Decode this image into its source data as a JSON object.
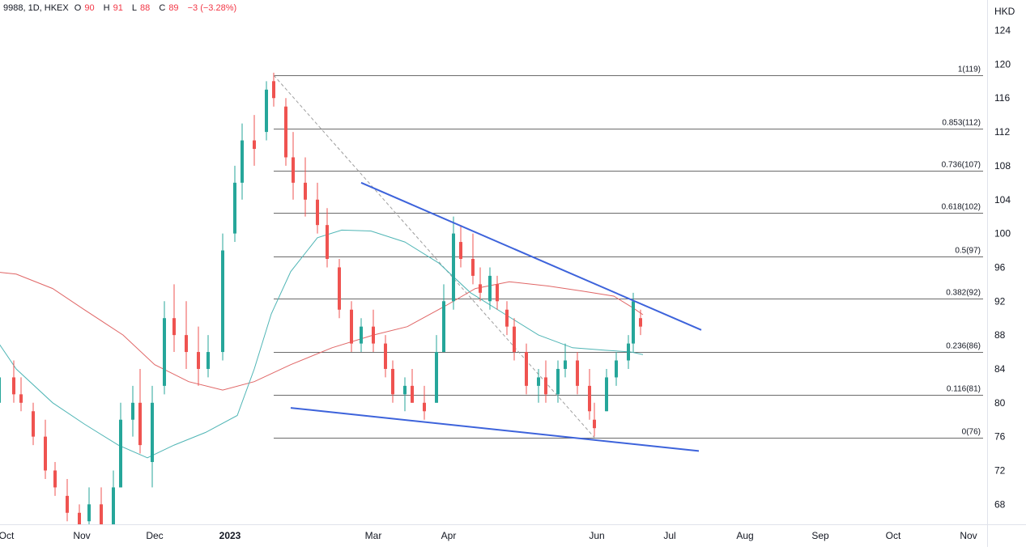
{
  "legend": {
    "symbol": "9988, 1D, HKEX",
    "o_label": "O",
    "o": "90",
    "h_label": "H",
    "h": "91",
    "l_label": "L",
    "l": "88",
    "c_label": "C",
    "c": "89",
    "change": "−3 (−3.28%)"
  },
  "colors": {
    "up": "#26a69a",
    "down": "#ef5350",
    "ma_fast": "#4fb5b5",
    "ma_slow": "#e06666",
    "trendline": "#3d63db",
    "fib": "#6b6b6b",
    "diagonal": "#9e9e9e"
  },
  "chart_data": {
    "type": "candlestick",
    "currency_label": "HKD",
    "ylim": [
      65,
      126
    ],
    "y_ticks": [
      68,
      72,
      76,
      80,
      84,
      88,
      92,
      96,
      100,
      104,
      108,
      112,
      116,
      120,
      124
    ],
    "x_tick_labels": [
      "Oct",
      "Nov",
      "Dec",
      "2023",
      "Mar",
      "Apr",
      "Jun",
      "Jul",
      "Aug",
      "Sep",
      "Oct",
      "Nov"
    ],
    "x_tick_dates": [
      "2022-10-01",
      "2022-11-01",
      "2022-12-01",
      "2023-01-01",
      "2023-03-01",
      "2023-04-01",
      "2023-06-01",
      "2023-07-01",
      "2023-08-01",
      "2023-09-01",
      "2023-10-01",
      "2023-11-01"
    ],
    "fib_levels": [
      {
        "label": "1(119)",
        "value": 118.7
      },
      {
        "label": "0.853(112)",
        "value": 112.4
      },
      {
        "label": "0.736(107)",
        "value": 107.4
      },
      {
        "label": "0.618(102)",
        "value": 102.4
      },
      {
        "label": "0.5(97)",
        "value": 97.3
      },
      {
        "label": "0.382(92)",
        "value": 92.3
      },
      {
        "label": "0.236(86)",
        "value": 86.0
      },
      {
        "label": "0.116(81)",
        "value": 80.9
      },
      {
        "label": "0(76)",
        "value": 75.9
      }
    ],
    "trendlines": [
      {
        "x": [
          "2023-02-24",
          "2023-07-14"
        ],
        "y": [
          106.0,
          88.6
        ]
      },
      {
        "x": [
          "2023-01-26",
          "2023-07-13"
        ],
        "y": [
          79.4,
          74.3
        ]
      }
    ],
    "diagonal": {
      "x": [
        "2023-01-19",
        "2023-05-31"
      ],
      "y": [
        118.7,
        75.9
      ]
    },
    "ma_fast": [
      [
        "2022-09-22",
        89.5
      ],
      [
        "2022-10-05",
        84
      ],
      [
        "2022-10-20",
        80
      ],
      [
        "2022-11-02",
        77.5
      ],
      [
        "2022-11-16",
        75
      ],
      [
        "2022-11-28",
        73.5
      ],
      [
        "2022-12-09",
        75
      ],
      [
        "2022-12-22",
        76.5
      ],
      [
        "2023-01-04",
        78.5
      ],
      [
        "2023-01-11",
        84
      ],
      [
        "2023-01-18",
        90.5
      ],
      [
        "2023-01-26",
        95.5
      ],
      [
        "2023-02-06",
        99.5
      ],
      [
        "2023-02-16",
        100.4
      ],
      [
        "2023-02-28",
        100.3
      ],
      [
        "2023-03-14",
        99
      ],
      [
        "2023-03-28",
        96.5
      ],
      [
        "2023-04-10",
        93
      ],
      [
        "2023-04-24",
        90.5
      ],
      [
        "2023-05-08",
        88
      ],
      [
        "2023-05-22",
        86.5
      ],
      [
        "2023-06-05",
        86.2
      ],
      [
        "2023-06-15",
        86
      ],
      [
        "2023-06-20",
        85.7
      ]
    ],
    "ma_slow": [
      [
        "2022-09-22",
        95.6
      ],
      [
        "2022-10-05",
        95.2
      ],
      [
        "2022-10-20",
        93.5
      ],
      [
        "2022-11-02",
        91
      ],
      [
        "2022-11-18",
        88
      ],
      [
        "2022-12-01",
        84.5
      ],
      [
        "2022-12-15",
        82.5
      ],
      [
        "2022-12-29",
        81.5
      ],
      [
        "2023-01-11",
        82.5
      ],
      [
        "2023-01-26",
        84.5
      ],
      [
        "2023-02-12",
        86.5
      ],
      [
        "2023-03-01",
        88
      ],
      [
        "2023-03-15",
        89
      ],
      [
        "2023-03-31",
        91.5
      ],
      [
        "2023-04-12",
        93.5
      ],
      [
        "2023-04-26",
        94.3
      ],
      [
        "2023-05-12",
        93.8
      ],
      [
        "2023-05-26",
        93.2
      ],
      [
        "2023-06-08",
        92.6
      ],
      [
        "2023-06-16",
        91.2
      ],
      [
        "2023-06-20",
        90.4
      ]
    ],
    "candles": [
      [
        "2022-09-23",
        85,
        86,
        78,
        79
      ],
      [
        "2022-09-28",
        80,
        84,
        79,
        83
      ],
      [
        "2022-10-04",
        83,
        85,
        80,
        81
      ],
      [
        "2022-10-07",
        81,
        83,
        79,
        80
      ],
      [
        "2022-10-12",
        79,
        80,
        75,
        76
      ],
      [
        "2022-10-17",
        76,
        78,
        71,
        72
      ],
      [
        "2022-10-21",
        72,
        73,
        69,
        70
      ],
      [
        "2022-10-26",
        69,
        71,
        66,
        67
      ],
      [
        "2022-10-31",
        67,
        68,
        64,
        65
      ],
      [
        "2022-11-04",
        66,
        70,
        64,
        68
      ],
      [
        "2022-11-09",
        68,
        70,
        62,
        63
      ],
      [
        "2022-11-14",
        64,
        72,
        63,
        70
      ],
      [
        "2022-11-17",
        70,
        80,
        70,
        78
      ],
      [
        "2022-11-22",
        78,
        82,
        76,
        80
      ],
      [
        "2022-11-25",
        80,
        84,
        74,
        75
      ],
      [
        "2022-11-30",
        73,
        82,
        70,
        80
      ],
      [
        "2022-12-05",
        82,
        92,
        81,
        90
      ],
      [
        "2022-12-09",
        90,
        94,
        86,
        88
      ],
      [
        "2022-12-14",
        88,
        92,
        84,
        86
      ],
      [
        "2022-12-19",
        86,
        89,
        82,
        84
      ],
      [
        "2022-12-23",
        84,
        88,
        83,
        86
      ],
      [
        "2022-12-29",
        86,
        100,
        85,
        98
      ],
      [
        "2023-01-03",
        100,
        108,
        99,
        106
      ],
      [
        "2023-01-06",
        106,
        113,
        104,
        111
      ],
      [
        "2023-01-11",
        111,
        114,
        108,
        110
      ],
      [
        "2023-01-16",
        112,
        118,
        111,
        117
      ],
      [
        "2023-01-19",
        118,
        119,
        115,
        116
      ],
      [
        "2023-01-24",
        115,
        116,
        108,
        109
      ],
      [
        "2023-01-27",
        109,
        112,
        104,
        106
      ],
      [
        "2023-02-01",
        106,
        109,
        102,
        104
      ],
      [
        "2023-02-06",
        104,
        106,
        100,
        101
      ],
      [
        "2023-02-10",
        101,
        103,
        96,
        97
      ],
      [
        "2023-02-15",
        96,
        97,
        90,
        91
      ],
      [
        "2023-02-20",
        91,
        92,
        86,
        87
      ],
      [
        "2023-02-24",
        87,
        90,
        86,
        89
      ],
      [
        "2023-03-01",
        89,
        91,
        86,
        87
      ],
      [
        "2023-03-06",
        87,
        88,
        83,
        84
      ],
      [
        "2023-03-09",
        84,
        85,
        80,
        81
      ],
      [
        "2023-03-14",
        81,
        83,
        79,
        82
      ],
      [
        "2023-03-17",
        82,
        84,
        80,
        80
      ],
      [
        "2023-03-22",
        80,
        82,
        78,
        79
      ],
      [
        "2023-03-27",
        80,
        88,
        80,
        86
      ],
      [
        "2023-03-30",
        86,
        94,
        86,
        92
      ],
      [
        "2023-04-03",
        92,
        102,
        91,
        100
      ],
      [
        "2023-04-06",
        99,
        101,
        96,
        97
      ],
      [
        "2023-04-11",
        97,
        100,
        94,
        95
      ],
      [
        "2023-04-14",
        94,
        96,
        92,
        93
      ],
      [
        "2023-04-18",
        92,
        96,
        91,
        95
      ],
      [
        "2023-04-21",
        94,
        95,
        91,
        92
      ],
      [
        "2023-04-25",
        91,
        92,
        88,
        89
      ],
      [
        "2023-04-28",
        89,
        90,
        85,
        86
      ],
      [
        "2023-05-03",
        86,
        87,
        81,
        82
      ],
      [
        "2023-05-08",
        82,
        84,
        80,
        83
      ],
      [
        "2023-05-11",
        83,
        85,
        80,
        81
      ],
      [
        "2023-05-16",
        81,
        85,
        80,
        84
      ],
      [
        "2023-05-19",
        84,
        87,
        83,
        85
      ],
      [
        "2023-05-24",
        85,
        86,
        81,
        82
      ],
      [
        "2023-05-29",
        82,
        84,
        78,
        79
      ],
      [
        "2023-05-31",
        78,
        80,
        76,
        77
      ],
      [
        "2023-06-05",
        79,
        84,
        79,
        83
      ],
      [
        "2023-06-09",
        83,
        86,
        82,
        85
      ],
      [
        "2023-06-14",
        85,
        88,
        84,
        87
      ],
      [
        "2023-06-16",
        87,
        93,
        86,
        92
      ],
      [
        "2023-06-19",
        90,
        91,
        88,
        89
      ]
    ]
  }
}
